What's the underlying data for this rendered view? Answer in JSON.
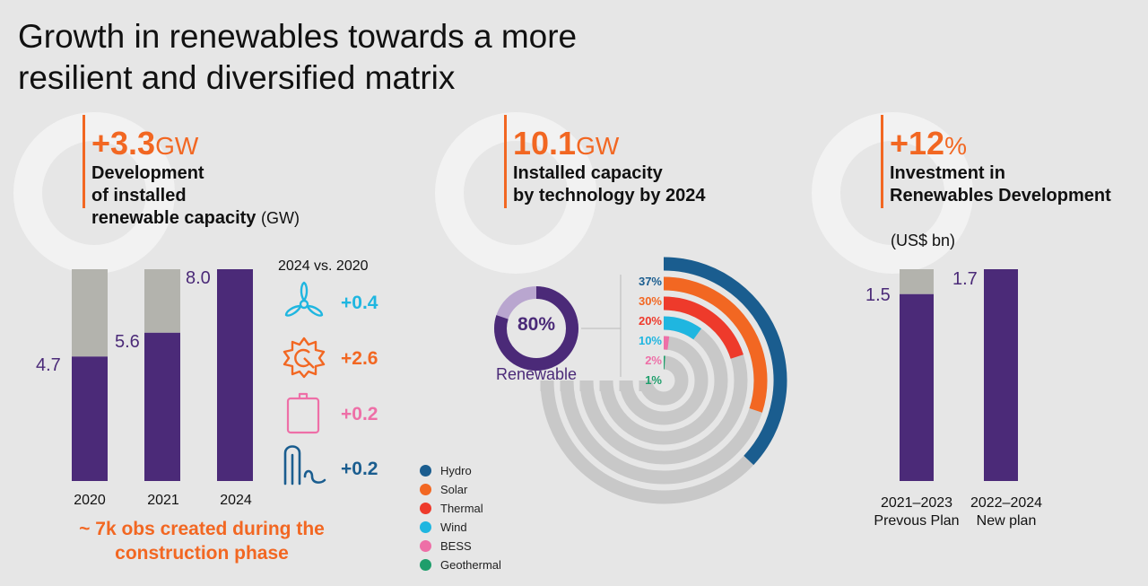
{
  "title": "Growth in renewables towards a more resilient and diversified matrix",
  "kpi1": {
    "value": "+3.3",
    "unit": "GW",
    "desc_bold": [
      "Development",
      "of installed",
      "renewable capacity"
    ],
    "desc_light": "(GW)"
  },
  "kpi2": {
    "value": "10.1",
    "unit": "GW",
    "desc_bold": [
      "Installed capacity",
      "by technology by 2024"
    ]
  },
  "kpi3": {
    "value": "+12",
    "unit": "%",
    "desc_bold": [
      "Investment in",
      "Renewables Development"
    ]
  },
  "deltas": {
    "header": "2024 vs. 2020",
    "items": [
      {
        "icon": "wind-turbine-icon",
        "value": "+0.4",
        "color": "#1fb6e0"
      },
      {
        "icon": "solar-icon",
        "value": "+2.6",
        "color": "#f26722"
      },
      {
        "icon": "battery-icon",
        "value": "+0.2",
        "color": "#ee6fa7"
      },
      {
        "icon": "geothermal-pipes-icon",
        "value": "+0.2",
        "color": "#1a5d8f"
      }
    ]
  },
  "jobs_text": "~ 7k obs created during the construction phase",
  "donut": {
    "value": "80%",
    "label": "Renewable",
    "fraction": 0.8
  },
  "inv_unit": "(US$ bn)",
  "colors": {
    "accent": "#f26722",
    "purple": "#4b2a78",
    "grey": "#b3b3ad",
    "arc_bg": "#c8c8c8"
  },
  "chart_data": [
    {
      "type": "bar",
      "title": "",
      "categories": [
        "2020",
        "2021",
        "2024"
      ],
      "series": [
        {
          "values": [
            4.7,
            5.6,
            8.0
          ]
        }
      ],
      "value_labels": [
        "4.7",
        "5.6",
        "8.0"
      ],
      "ylim": [
        0,
        8.0
      ],
      "grid": false
    },
    {
      "type": "pie",
      "title": "",
      "categories": [
        "Hydro",
        "Solar",
        "Thermal",
        "Wind",
        "BESS",
        "Geothermal"
      ],
      "values": [
        37,
        30,
        20,
        10,
        2,
        1
      ],
      "labels": [
        "37%",
        "30%",
        "20%",
        "10%",
        "2%",
        "1%"
      ],
      "colors": [
        "#1a5d8f",
        "#f26722",
        "#ee3a2b",
        "#1fb6e0",
        "#ee6fa7",
        "#1e9e6b"
      ],
      "legend": "bottom-left"
    },
    {
      "type": "bar",
      "title": "",
      "categories": [
        "2021–2023\nPrevous Plan",
        "2022–2024\nNew plan"
      ],
      "series": [
        {
          "values": [
            1.5,
            1.7
          ]
        }
      ],
      "value_labels": [
        "1.5",
        "1.7"
      ],
      "ylim": [
        0,
        1.7
      ],
      "grid": false
    }
  ]
}
